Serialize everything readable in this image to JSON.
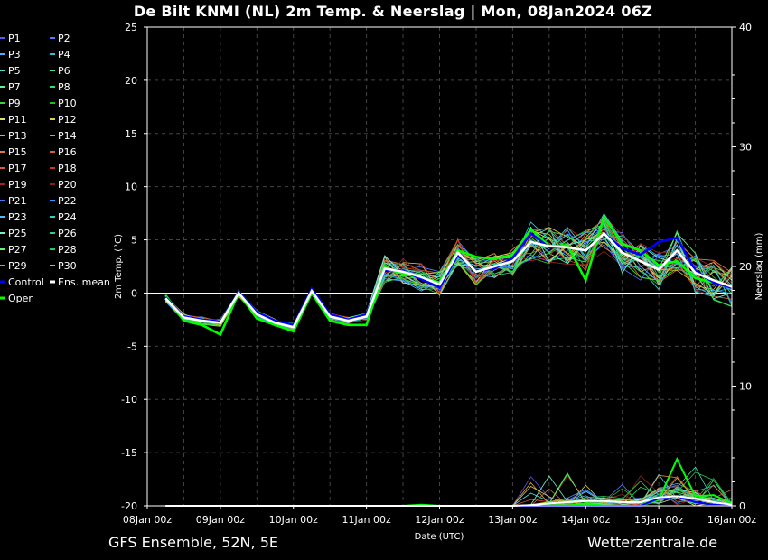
{
  "title": "De Bilt KNMI  (NL)  2m Temp. & Neerslag | Mon, 08Jan2024 06Z",
  "footer_left": "GFS Ensemble, 52N, 5E",
  "footer_right": "Wetterzentrale.de",
  "chart_data": {
    "type": "line",
    "xlabel": "Date (UTC)",
    "ylabel": "2m Temp. (°C)",
    "y2label": "Neerslag (mm)",
    "ylim": [
      -20,
      25
    ],
    "y2lim": [
      0,
      40
    ],
    "y_ticks": [
      -20,
      -15,
      -10,
      -5,
      0,
      5,
      10,
      15,
      20,
      25
    ],
    "y2_ticks": [
      0,
      10,
      20,
      30,
      40
    ],
    "x_ticks": [
      "08Jan 00z",
      "09Jan 00z",
      "10Jan 00z",
      "11Jan 00z",
      "12Jan 00z",
      "13Jan 00z",
      "14Jan 00z",
      "15Jan 00z",
      "16Jan 00z"
    ],
    "x_hours": [
      6,
      12,
      18,
      24,
      30,
      36,
      42,
      48,
      54,
      60,
      66,
      72,
      78,
      84,
      90,
      96,
      102,
      108,
      114,
      120,
      126,
      132,
      138,
      144,
      150,
      156,
      162,
      168,
      174,
      180,
      186,
      192
    ],
    "grid": true,
    "legend_location": "left",
    "legend": [
      "P1",
      "P2",
      "P3",
      "P4",
      "P5",
      "P6",
      "P7",
      "P8",
      "P9",
      "P10",
      "P11",
      "P12",
      "P13",
      "P14",
      "P15",
      "P16",
      "P17",
      "P18",
      "P19",
      "P20",
      "P21",
      "P22",
      "P23",
      "P24",
      "P25",
      "P26",
      "P27",
      "P28",
      "P29",
      "P30",
      "Control",
      "Ens. mean",
      "Oper"
    ],
    "legend_colors": [
      "#5555ff",
      "#5577ff",
      "#55aaff",
      "#33bbdd",
      "#55dddd",
      "#44ddaa",
      "#66ee88",
      "#33dd66",
      "#44cc44",
      "#22bb22",
      "#dddd77",
      "#ddcc55",
      "#ddaa55",
      "#dd9944",
      "#dd7744",
      "#cc6633",
      "#dd5544",
      "#cc3322",
      "#aa2222",
      "#882222",
      "#4477ff",
      "#3399ff",
      "#55bbee",
      "#33cccc",
      "#77eecc",
      "#33cc88",
      "#66ee77",
      "#22cc55",
      "#33dd33",
      "#ccbb22",
      "#0000ff",
      "#ffffff",
      "#00ff00"
    ],
    "series": [
      {
        "name": "Ens. mean",
        "temp": [
          -0.5,
          -2.3,
          -2.6,
          -2.8,
          0.0,
          -2.0,
          -2.8,
          -3.2,
          0.2,
          -2.2,
          -2.6,
          -2.2,
          2.3,
          2.0,
          1.5,
          0.8,
          3.8,
          2.0,
          2.5,
          3.0,
          4.8,
          4.4,
          4.3,
          4.0,
          5.6,
          3.8,
          3.0,
          2.2,
          4.0,
          1.9,
          1.2,
          0.6
        ],
        "precip": [
          0,
          0,
          0,
          0,
          0,
          0,
          0,
          0,
          0,
          0,
          0,
          0,
          0,
          0,
          0,
          0,
          0,
          0,
          0,
          0,
          0.05,
          0.2,
          0.3,
          0.4,
          0.4,
          0.3,
          0.3,
          0.7,
          0.8,
          0.6,
          0.3,
          0.1
        ]
      },
      {
        "name": "Control",
        "temp": [
          -0.4,
          -2.2,
          -2.5,
          -2.7,
          0.1,
          -1.8,
          -2.6,
          -3.0,
          0.4,
          -2.0,
          -2.5,
          -2.0,
          2.2,
          2.1,
          1.3,
          0.5,
          3.6,
          2.1,
          2.3,
          3.3,
          5.6,
          4.3,
          4.3,
          4.0,
          5.6,
          4.2,
          3.6,
          4.8,
          5.2,
          2.1,
          1.0,
          0.5
        ],
        "precip": [
          0,
          0,
          0,
          0,
          0,
          0,
          0,
          0,
          0,
          0,
          0,
          0,
          0,
          0,
          0,
          0,
          0,
          0,
          0,
          0,
          0,
          0,
          0,
          0,
          0,
          0,
          0,
          0.6,
          0.8,
          0.3,
          0.1,
          0
        ]
      },
      {
        "name": "Oper",
        "temp": [
          -0.2,
          -2.6,
          -3.0,
          -3.9,
          0.0,
          -2.4,
          -3.0,
          -3.6,
          0.0,
          -2.6,
          -3.0,
          -3.0,
          2.4,
          1.8,
          1.4,
          1.0,
          4.0,
          3.4,
          3.2,
          3.6,
          6.0,
          4.4,
          4.5,
          1.2,
          7.2,
          4.6,
          4.0,
          2.6,
          3.0,
          1.4,
          1.0,
          0.5
        ],
        "precip": [
          0,
          0,
          0,
          0,
          0,
          0,
          0,
          0,
          0,
          0,
          0,
          0,
          0,
          0,
          0.1,
          0,
          0,
          0,
          0,
          0,
          0,
          0,
          0,
          0.2,
          0,
          0,
          0,
          0.5,
          3.9,
          0.8,
          0.9,
          0.2
        ]
      }
    ]
  }
}
